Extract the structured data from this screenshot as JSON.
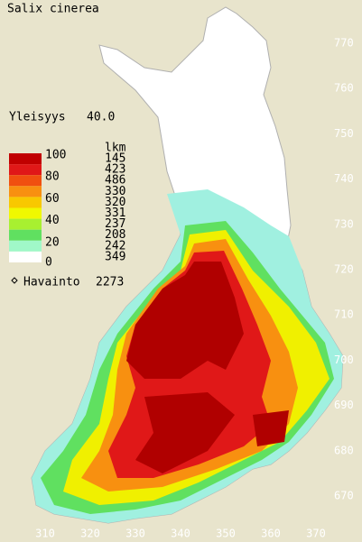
{
  "header": {
    "title": "Salix cinerea"
  },
  "frequency": {
    "label": "Yleisyys",
    "value": "40.0"
  },
  "legend": {
    "count_header": "lkm",
    "scale_labels": [
      "100",
      "80",
      "60",
      "40",
      "20",
      "0"
    ],
    "classes": [
      {
        "color": "#c00000",
        "count": "145"
      },
      {
        "color": "#e01818",
        "count": "423"
      },
      {
        "color": "#f05010",
        "count": "486"
      },
      {
        "color": "#f89010",
        "count": "330"
      },
      {
        "color": "#f8c800",
        "count": "320"
      },
      {
        "color": "#f0f800",
        "count": "331"
      },
      {
        "color": "#a8f030",
        "count": "237"
      },
      {
        "color": "#60e060",
        "count": "208"
      },
      {
        "color": "#a0f8c8",
        "count": "242"
      },
      {
        "color": "#ffffff",
        "count": "349"
      }
    ],
    "observations": {
      "label": "Havainto",
      "value": "2273"
    }
  },
  "x_axis": {
    "ticks": [
      "310",
      "320",
      "330",
      "340",
      "350",
      "360",
      "370"
    ]
  },
  "y_axis": {
    "ticks": [
      "770",
      "760",
      "750",
      "740",
      "730",
      "720",
      "710",
      "700",
      "690",
      "680",
      "670"
    ]
  }
}
